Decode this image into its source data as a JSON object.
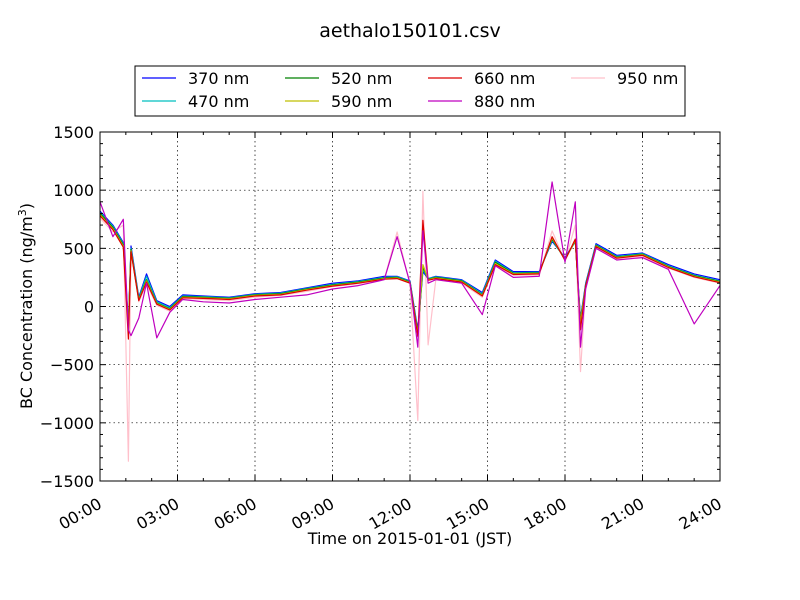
{
  "chart_data": {
    "type": "line",
    "title": "aethalo150101.csv",
    "xlabel": "Time on 2015-01-01 (JST)",
    "ylabel": "BC Concentration (ng/m³)",
    "ylabel_main": "BC Concentration (ng/m",
    "ylabel_sup": "3",
    "ylabel_close": ")",
    "xlim_hours": [
      0,
      24
    ],
    "ylim": [
      -1500,
      1500
    ],
    "x_ticks": [
      {
        "hour": 0,
        "label": "00:00"
      },
      {
        "hour": 3,
        "label": "03:00"
      },
      {
        "hour": 6,
        "label": "06:00"
      },
      {
        "hour": 9,
        "label": "09:00"
      },
      {
        "hour": 12,
        "label": "12:00"
      },
      {
        "hour": 15,
        "label": "15:00"
      },
      {
        "hour": 18,
        "label": "18:00"
      },
      {
        "hour": 21,
        "label": "21:00"
      },
      {
        "hour": 24,
        "label": "24:00"
      }
    ],
    "y_ticks": [
      -1500,
      -1000,
      -500,
      0,
      500,
      1000,
      1500
    ],
    "y_tick_labels": [
      "−1500",
      "−1000",
      "−500",
      "0",
      "500",
      "1000",
      "1500"
    ],
    "grid": true,
    "legend_position": "top",
    "series": [
      {
        "name": "370 nm",
        "color": "#0000ff",
        "x": [
          0,
          0.5,
          0.9,
          1.1,
          1.2,
          1.5,
          1.8,
          2.2,
          2.7,
          3.2,
          4,
          5,
          6,
          7,
          8,
          9,
          10,
          11,
          11.5,
          12,
          12.3,
          12.5,
          12.7,
          13,
          14,
          14.8,
          15.3,
          16,
          17,
          17.5,
          18,
          18.4,
          18.6,
          18.8,
          19.2,
          20,
          21,
          22,
          23,
          24
        ],
        "y": [
          820,
          700,
          550,
          -150,
          520,
          80,
          280,
          50,
          0,
          100,
          90,
          80,
          110,
          120,
          160,
          200,
          220,
          260,
          260,
          220,
          -200,
          300,
          240,
          260,
          230,
          120,
          400,
          300,
          300,
          560,
          420,
          560,
          -100,
          200,
          540,
          440,
          460,
          360,
          280,
          230
        ]
      },
      {
        "name": "470 nm",
        "color": "#00bfbf",
        "x": [
          0,
          0.5,
          0.9,
          1.1,
          1.2,
          1.5,
          1.8,
          2.2,
          2.7,
          3.2,
          4,
          5,
          6,
          7,
          8,
          9,
          10,
          11,
          11.5,
          12,
          12.3,
          12.5,
          12.7,
          13,
          14,
          14.8,
          15.3,
          16,
          17,
          17.5,
          18,
          18.4,
          18.6,
          18.8,
          19.2,
          20,
          21,
          22,
          23,
          24
        ],
        "y": [
          810,
          690,
          540,
          -160,
          500,
          70,
          260,
          40,
          -10,
          90,
          85,
          75,
          105,
          115,
          155,
          190,
          215,
          250,
          255,
          215,
          -220,
          320,
          240,
          255,
          225,
          110,
          390,
          290,
          295,
          570,
          410,
          560,
          -120,
          190,
          530,
          430,
          455,
          350,
          270,
          220
        ]
      },
      {
        "name": "520 nm",
        "color": "#008000",
        "x": [
          0,
          0.5,
          0.9,
          1.1,
          1.2,
          1.5,
          1.8,
          2.2,
          2.7,
          3.2,
          4,
          5,
          6,
          7,
          8,
          9,
          10,
          11,
          11.5,
          12,
          12.3,
          12.5,
          12.7,
          13,
          14,
          14.8,
          15.3,
          16,
          17,
          17.5,
          18,
          18.4,
          18.6,
          18.8,
          19.2,
          20,
          21,
          22,
          23,
          24
        ],
        "y": [
          800,
          680,
          530,
          -170,
          490,
          60,
          230,
          30,
          -20,
          85,
          80,
          70,
          100,
          110,
          150,
          185,
          210,
          245,
          250,
          210,
          -230,
          340,
          235,
          250,
          220,
          100,
          380,
          285,
          290,
          580,
          405,
          565,
          -130,
          185,
          525,
          425,
          450,
          345,
          265,
          215
        ]
      },
      {
        "name": "590 nm",
        "color": "#bfbf00",
        "x": [
          0,
          0.5,
          0.9,
          1.1,
          1.2,
          1.5,
          1.8,
          2.2,
          2.7,
          3.2,
          4,
          5,
          6,
          7,
          8,
          9,
          10,
          11,
          11.5,
          12,
          12.3,
          12.5,
          12.7,
          13,
          14,
          14.8,
          15.3,
          16,
          17,
          17.5,
          18,
          18.4,
          18.6,
          18.8,
          19.2,
          20,
          21,
          22,
          23,
          24
        ],
        "y": [
          790,
          670,
          520,
          -180,
          480,
          55,
          220,
          25,
          -25,
          80,
          75,
          65,
          95,
          105,
          145,
          180,
          205,
          240,
          245,
          205,
          -240,
          360,
          230,
          245,
          215,
          95,
          370,
          280,
          285,
          590,
          400,
          570,
          -140,
          180,
          520,
          420,
          445,
          340,
          260,
          210
        ]
      },
      {
        "name": "660 nm",
        "color": "#dd0000",
        "x": [
          0,
          0.5,
          0.9,
          1.1,
          1.2,
          1.5,
          1.8,
          2.2,
          2.7,
          3.2,
          4,
          5,
          6,
          7,
          8,
          9,
          10,
          11,
          11.5,
          12,
          12.3,
          12.5,
          12.7,
          13,
          14,
          14.8,
          15.3,
          16,
          17,
          17.5,
          18,
          18.4,
          18.6,
          18.8,
          19.2,
          20,
          21,
          22,
          23,
          24
        ],
        "y": [
          780,
          660,
          510,
          -280,
          470,
          50,
          210,
          20,
          -30,
          75,
          70,
          60,
          90,
          100,
          140,
          175,
          200,
          235,
          240,
          200,
          -260,
          740,
          225,
          240,
          210,
          90,
          360,
          275,
          280,
          600,
          395,
          580,
          -200,
          175,
          515,
          415,
          440,
          335,
          255,
          205
        ]
      },
      {
        "name": "880 nm",
        "color": "#bf00bf",
        "x": [
          0,
          0.5,
          0.9,
          1.1,
          1.2,
          1.5,
          1.8,
          2.2,
          2.7,
          3.2,
          4,
          5,
          6,
          7,
          8,
          9,
          10,
          11,
          11.5,
          12,
          12.3,
          12.5,
          12.7,
          13,
          14,
          14.8,
          15.3,
          16,
          17,
          17.5,
          18,
          18.4,
          18.6,
          18.8,
          19.2,
          20,
          21,
          22,
          23,
          24
        ],
        "y": [
          900,
          600,
          750,
          -200,
          -250,
          -100,
          200,
          -270,
          -50,
          60,
          40,
          30,
          60,
          80,
          100,
          150,
          180,
          230,
          600,
          200,
          -350,
          650,
          200,
          230,
          200,
          -70,
          350,
          250,
          260,
          1070,
          380,
          900,
          -350,
          150,
          500,
          400,
          420,
          320,
          -150,
          180
        ]
      },
      {
        "name": "950 nm",
        "color": "#ffc0cb",
        "x": [
          0,
          0.5,
          0.9,
          1.1,
          1.2,
          1.5,
          1.8,
          2.2,
          2.7,
          3.2,
          4,
          5,
          6,
          7,
          8,
          9,
          10,
          11,
          11.5,
          12,
          12.3,
          12.5,
          12.7,
          13,
          14,
          14.8,
          15.3,
          16,
          17,
          17.5,
          18,
          18.4,
          18.6,
          18.8,
          19.2,
          20,
          21,
          22,
          23,
          24
        ],
        "y": [
          760,
          640,
          700,
          -1330,
          480,
          40,
          190,
          10,
          -40,
          70,
          60,
          50,
          80,
          95,
          130,
          170,
          195,
          230,
          640,
          190,
          -980,
          990,
          -330,
          230,
          200,
          80,
          350,
          270,
          270,
          650,
          390,
          700,
          -560,
          170,
          510,
          410,
          430,
          330,
          250,
          200
        ]
      }
    ]
  }
}
